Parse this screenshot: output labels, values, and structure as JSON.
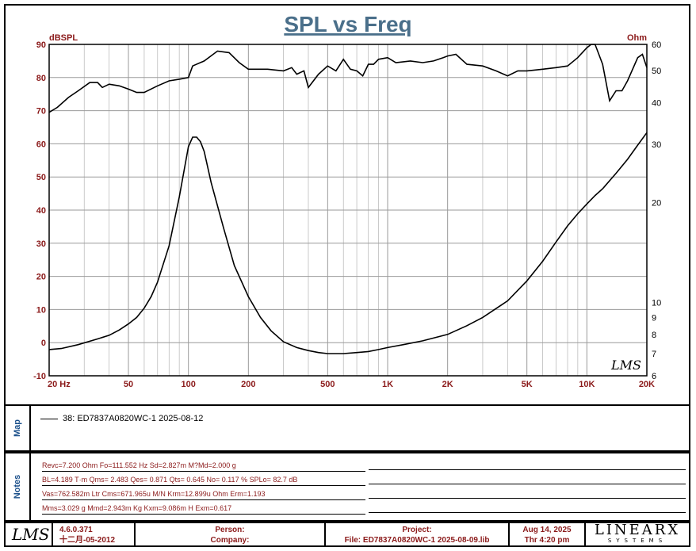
{
  "chart_data": {
    "type": "line",
    "title": "SPL vs Freq",
    "x_scale": "log",
    "xlim": [
      20,
      20000
    ],
    "y_left": {
      "unit": "dBSPL",
      "lim": [
        -10,
        90
      ],
      "ticks": [
        90,
        80,
        70,
        60,
        50,
        40,
        30,
        20,
        10,
        0,
        -10
      ]
    },
    "y_right": {
      "unit": "Ohm",
      "scale": "log",
      "lim": [
        6,
        60
      ],
      "ticks": [
        60,
        50,
        40,
        30,
        20,
        10,
        9,
        8,
        7,
        6
      ]
    },
    "x_tick_labels": [
      {
        "value": 20,
        "label": "20 Hz"
      },
      {
        "value": 50,
        "label": "50"
      },
      {
        "value": 100,
        "label": "100"
      },
      {
        "value": 200,
        "label": "200"
      },
      {
        "value": 500,
        "label": "500"
      },
      {
        "value": 1000,
        "label": "1K"
      },
      {
        "value": 2000,
        "label": "2K"
      },
      {
        "value": 5000,
        "label": "5K"
      },
      {
        "value": 10000,
        "label": "10K"
      },
      {
        "value": 20000,
        "label": "20K"
      }
    ],
    "grid": true,
    "series": [
      {
        "name": "38: ED7837A0820WC-1 2025-08-12",
        "axis": "left",
        "x": [
          20,
          22,
          25,
          28,
          32,
          35,
          37,
          40,
          45,
          50,
          55,
          60,
          70,
          80,
          90,
          100,
          105,
          120,
          140,
          160,
          180,
          200,
          250,
          300,
          330,
          350,
          380,
          400,
          450,
          500,
          550,
          600,
          650,
          700,
          750,
          800,
          850,
          900,
          1000,
          1100,
          1300,
          1500,
          1700,
          1900,
          2000,
          2200,
          2500,
          3000,
          3500,
          4000,
          4500,
          5000,
          6000,
          7000,
          8000,
          9000,
          10000,
          10500,
          11000,
          12000,
          13000,
          14000,
          15000,
          16000,
          18000,
          19000,
          20000
        ],
        "values": [
          69.5,
          71,
          74,
          76,
          78.5,
          78.5,
          77,
          78,
          77.5,
          76.5,
          75.5,
          75.5,
          77.5,
          79,
          79.5,
          80,
          83.5,
          85,
          88,
          87.5,
          84.5,
          82.5,
          82.5,
          82,
          83,
          81,
          82,
          77,
          81,
          83.5,
          82,
          85.5,
          82.5,
          82,
          80.5,
          84,
          84,
          85.5,
          86,
          84.5,
          85,
          84.5,
          85,
          86,
          86.5,
          87,
          84,
          83.5,
          82,
          80.5,
          82,
          82,
          82.5,
          83,
          83.5,
          86,
          89,
          91,
          90,
          84,
          73,
          76,
          76,
          79,
          86,
          87,
          83
        ]
      },
      {
        "name": "impedance",
        "axis": "right",
        "x": [
          20,
          23,
          28,
          35,
          40,
          45,
          50,
          55,
          60,
          65,
          70,
          80,
          90,
          100,
          105,
          110,
          115,
          120,
          130,
          150,
          170,
          200,
          230,
          260,
          300,
          350,
          400,
          450,
          500,
          600,
          700,
          800,
          900,
          1000,
          1200,
          1500,
          2000,
          2500,
          3000,
          4000,
          5000,
          6000,
          7000,
          8000,
          9000,
          10000,
          11000,
          12000,
          14000,
          16000,
          18000,
          20000
        ],
        "values": [
          7.2,
          7.25,
          7.45,
          7.75,
          7.95,
          8.25,
          8.6,
          9.0,
          9.6,
          10.4,
          11.5,
          14.8,
          20.8,
          29.5,
          31.5,
          31.5,
          30.5,
          28.5,
          23,
          16.8,
          12.9,
          10.4,
          9.0,
          8.2,
          7.6,
          7.3,
          7.15,
          7.05,
          7.0,
          7.0,
          7.05,
          7.1,
          7.2,
          7.3,
          7.45,
          7.65,
          8.0,
          8.5,
          9.0,
          10.1,
          11.6,
          13.3,
          15.2,
          17.0,
          18.5,
          19.8,
          21.0,
          22.0,
          24.5,
          27.0,
          29.8,
          32.5
        ]
      }
    ]
  },
  "legend": {
    "panel_label": "Map",
    "entry": "38: ED7837A0820WC-1 2025-08-12"
  },
  "notes": {
    "panel_label": "Notes",
    "lines": [
      "Revc=7.200 Ohm  Fo=111.552 Hz  Sd=2.827m M?Md=2.000 g",
      "BL=4.189 T·m  Qms= 2.483  Qes= 0.871  Qts= 0.645  No= 0.117 %  SPLo= 82.7 dB",
      "Vas=762.582m Ltr  Cms=671.965u M/N  Krm=12.899u Ohm  Erm=1.193",
      "Mms=3.029 g  Mmd=2.943m Kg  Kxm=9.086m H  Exm=0.617"
    ]
  },
  "footer": {
    "logo_text": "LMS",
    "version": "4.6.0.371",
    "build_date": "十二月-05-2012",
    "person_label": "Person:",
    "company_label": "Company:",
    "project_label": "Project:",
    "file_label": "File: ED7837A0820WC-1 2025-08-09.lib",
    "date": "Aug 14, 2025",
    "time": "Thr  4:20 pm",
    "brand": "LINEARX",
    "brand_sub": "SYSTEMS"
  },
  "chart_watermark": "LMS"
}
